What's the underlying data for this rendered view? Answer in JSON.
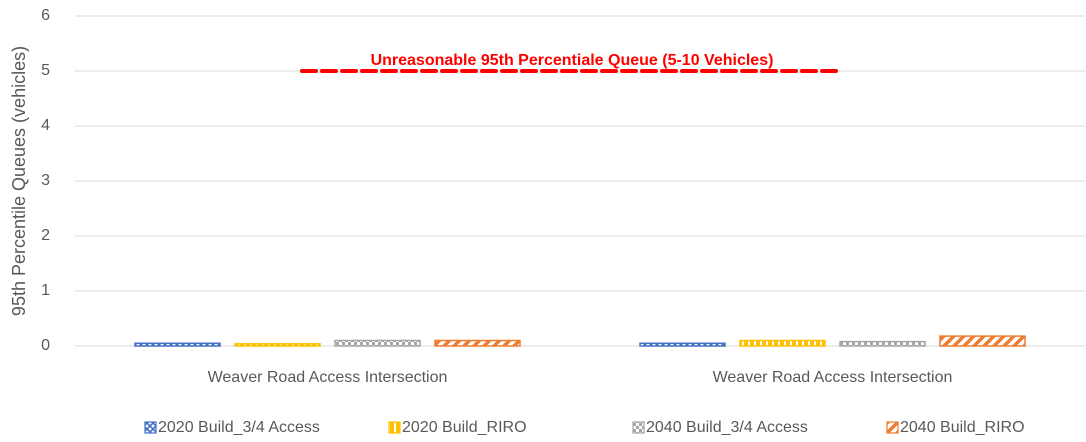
{
  "chart_data": {
    "type": "bar",
    "y_axis_label": "95th Percentile Queues (vehicles)",
    "categories": [
      "Weaver Road Access Intersection",
      "Weaver Road Access Intersection"
    ],
    "series": [
      {
        "name": "2020 Build_3/4 Access",
        "color": "#4472c4",
        "pattern": "cross",
        "values": [
          0.05,
          0.05
        ]
      },
      {
        "name": "2020 Build_RIRO",
        "color": "#ffc000",
        "pattern": "vertical",
        "values": [
          0.04,
          0.1
        ]
      },
      {
        "name": "2040 Build_3/4 Access",
        "color": "#a5a5a5",
        "pattern": "dots",
        "values": [
          0.1,
          0.08
        ]
      },
      {
        "name": "2040 Build_RIRO",
        "color": "#ed7d31",
        "pattern": "wide-diagonal",
        "values": [
          0.1,
          0.18
        ]
      }
    ],
    "threshold": {
      "label": "Unreasonable 95th Percentiale Queue (5-10 Vehicles)",
      "value": 5,
      "color": "#ff0000"
    },
    "ylim": [
      0,
      6
    ],
    "yticks": [
      0,
      1,
      2,
      3,
      4,
      5,
      6
    ],
    "grid": true,
    "legend": "bottom"
  }
}
